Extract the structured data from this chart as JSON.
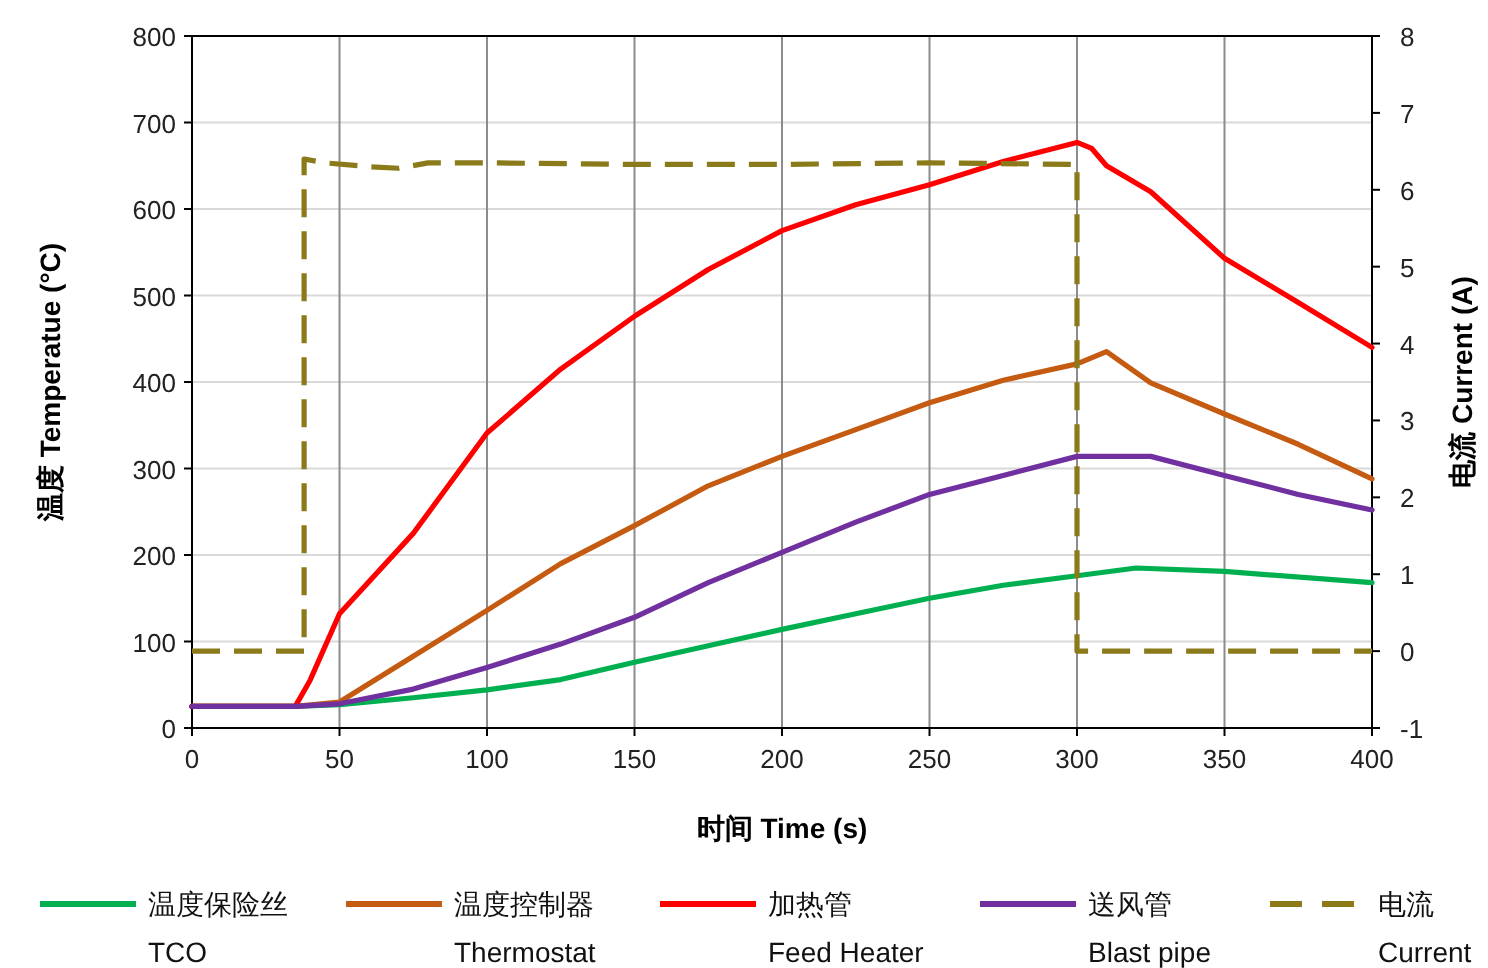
{
  "chart_data": {
    "type": "line",
    "xlabel": "时间 Time (s)",
    "ylabel": "温度 Temperatue (°C)",
    "y2label": "电流 Current (A)",
    "xlim": [
      0,
      400
    ],
    "xticks": [
      0,
      50,
      100,
      150,
      200,
      250,
      300,
      350,
      400
    ],
    "ylim": [
      0,
      800
    ],
    "yticks": [
      0,
      100,
      200,
      300,
      400,
      500,
      600,
      700,
      800
    ],
    "y2lim": [
      -1,
      8
    ],
    "y2ticks": [
      -1,
      0,
      1,
      2,
      3,
      4,
      5,
      6,
      7,
      8
    ],
    "grid": true,
    "legend": "bottom",
    "line_style": "solid",
    "series": [
      {
        "name": "温度保险丝\nTCO",
        "color": "#00b050",
        "x": [
          0,
          35,
          50,
          75,
          100,
          125,
          150,
          175,
          200,
          225,
          250,
          275,
          300,
          320,
          350,
          400
        ],
        "values": [
          25,
          25,
          27,
          35,
          44,
          56,
          76,
          95,
          114,
          132,
          150,
          165,
          176,
          185,
          181,
          168
        ]
      },
      {
        "name": "温度控制器\nThermostat",
        "color": "#c55a11",
        "x": [
          0,
          35,
          50,
          75,
          100,
          125,
          150,
          175,
          200,
          225,
          250,
          275,
          300,
          310,
          325,
          350,
          375,
          400
        ],
        "values": [
          25,
          25,
          30,
          83,
          136,
          190,
          234,
          280,
          314,
          345,
          376,
          402,
          421,
          435,
          399,
          363,
          328,
          288
        ]
      },
      {
        "name": "加热管\nFeed Heater",
        "color": "#ff0000",
        "x": [
          0,
          35,
          40,
          50,
          75,
          100,
          125,
          150,
          175,
          200,
          225,
          250,
          275,
          300,
          305,
          310,
          325,
          350,
          375,
          400
        ],
        "values": [
          25,
          25,
          55,
          132,
          225,
          341,
          415,
          476,
          530,
          575,
          605,
          628,
          655,
          677,
          670,
          650,
          620,
          543,
          492,
          440
        ]
      },
      {
        "name": "送风管\nBlast pipe",
        "color": "#7030a0",
        "x": [
          0,
          35,
          50,
          75,
          100,
          125,
          150,
          175,
          200,
          225,
          250,
          275,
          300,
          325,
          350,
          375,
          400
        ],
        "values": [
          25,
          25,
          28,
          45,
          70,
          97,
          128,
          168,
          203,
          238,
          270,
          292,
          314,
          314,
          292,
          270,
          252
        ]
      },
      {
        "name": "电流\nCurrent",
        "color": "#8b7a1a",
        "axis": "y2",
        "line_style": "dashed",
        "x": [
          0,
          38,
          38,
          45,
          60,
          70,
          80,
          100,
          150,
          200,
          250,
          300,
          300,
          400
        ],
        "values": [
          0,
          0,
          6.4,
          6.35,
          6.3,
          6.28,
          6.35,
          6.35,
          6.33,
          6.33,
          6.35,
          6.33,
          0,
          0
        ]
      }
    ]
  }
}
